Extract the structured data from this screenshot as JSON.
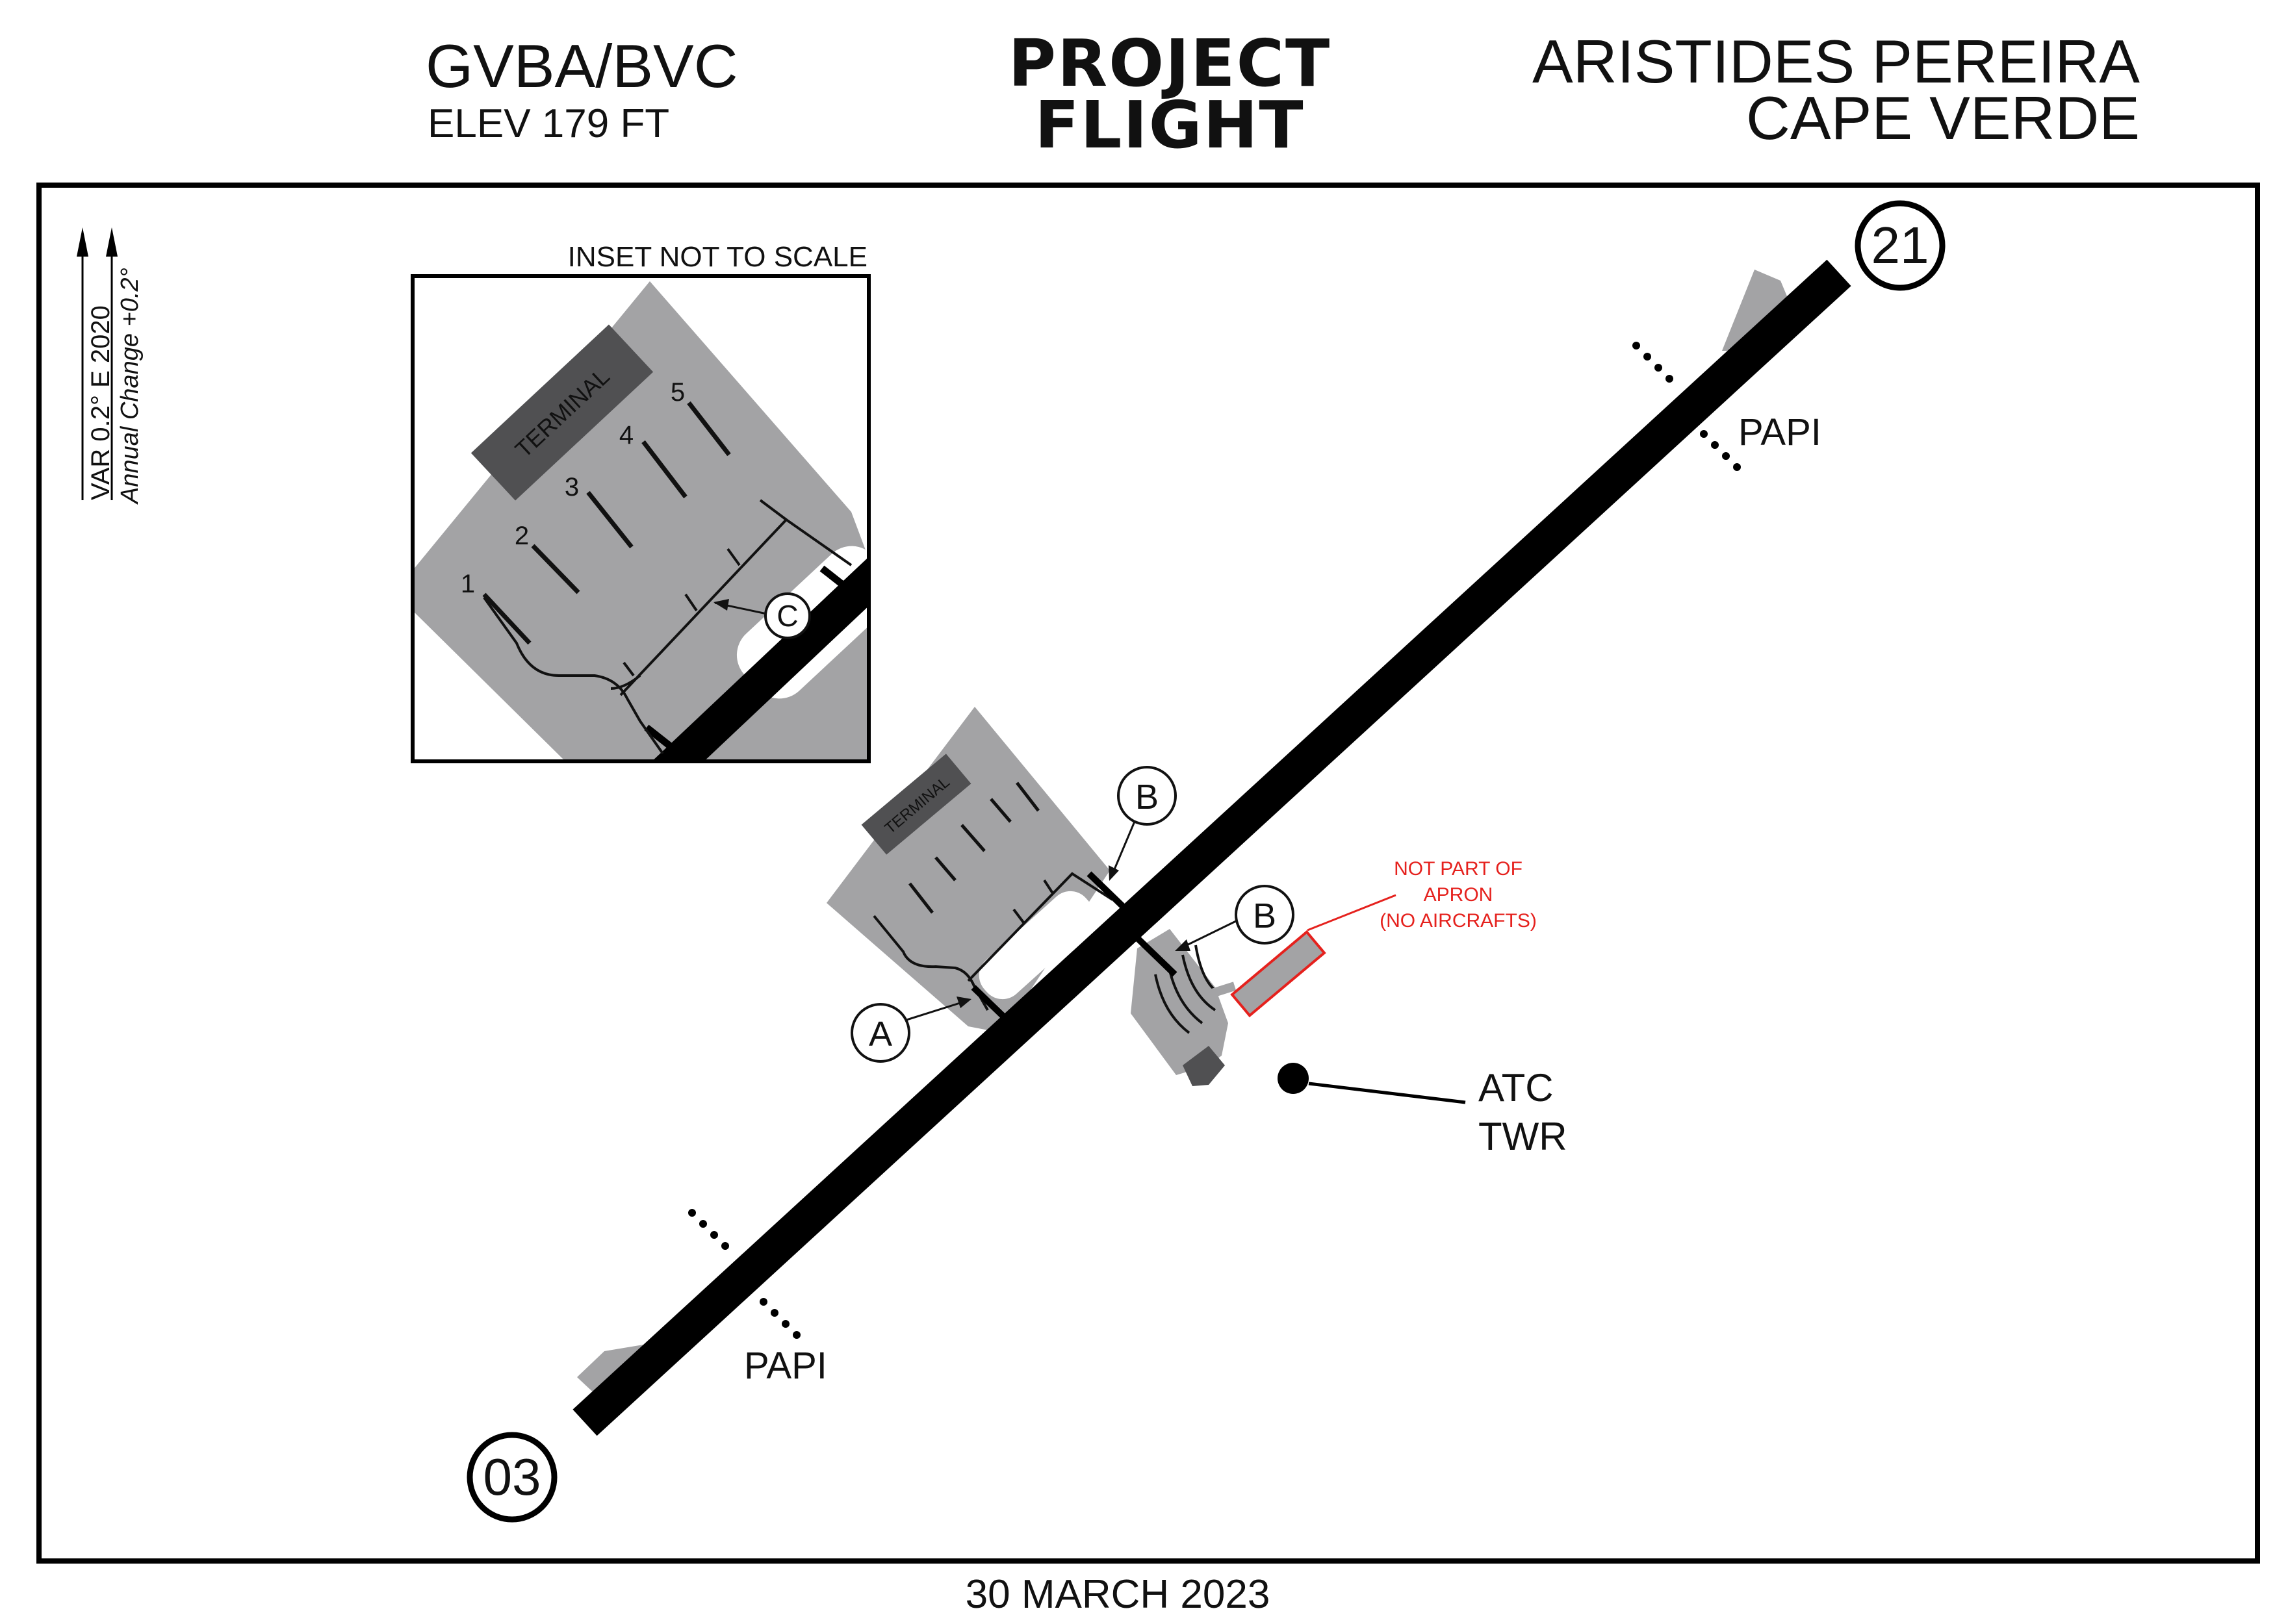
{
  "header": {
    "id_code": "GVBA/BVC",
    "elevation": "ELEV 179 FT",
    "brand_line1": "PROJECT",
    "brand_line2": "FLIGHT",
    "airport_line1": "ARISTIDES PEREIRA",
    "airport_line2": "CAPE VERDE"
  },
  "footer": {
    "date": "30 MARCH 2023"
  },
  "magnetic": {
    "line1": "VAR  0.2° E 2020",
    "line2": "Annual Change +0.2°"
  },
  "inset": {
    "caption": "INSET NOT TO SCALE",
    "terminal": "TERMINAL",
    "stands": [
      "1",
      "2",
      "3",
      "4",
      "5"
    ],
    "taxiway": "C"
  },
  "main": {
    "terminal": "TERMINAL",
    "runway_ends": {
      "north": "21",
      "south": "03"
    },
    "papi_north": "PAPI",
    "papi_south": "PAPI",
    "taxiway_a": "A",
    "taxiway_b_north": "B",
    "taxiway_b_south": "B",
    "atc_line1": "ATC",
    "atc_line2": "TWR",
    "note_line1": "NOT PART OF",
    "note_line2": "APRON",
    "note_line3": "(NO AIRCRAFTS)"
  },
  "colors": {
    "runway": "#000000",
    "apron": "#a3a3a5",
    "terminal": "#505052",
    "note": "#e5211d"
  }
}
